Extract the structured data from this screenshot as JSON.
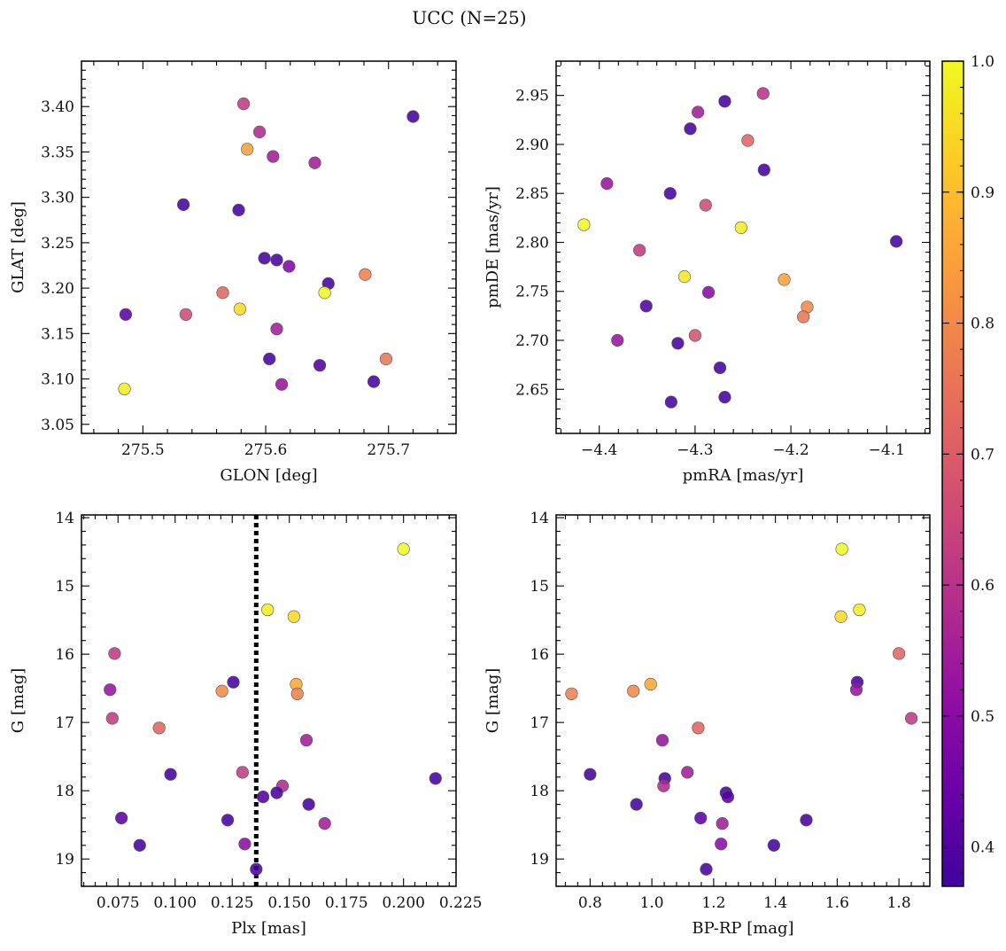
{
  "title": "UCC (N=25)",
  "panels": [
    {
      "id": "glon-glat",
      "xlabel": "GLON [deg]",
      "ylabel": "GLAT [deg]",
      "xlim": [
        275.45,
        275.755
      ],
      "ylim": [
        3.04,
        3.45
      ],
      "xticks": [
        275.5,
        275.6,
        275.7
      ],
      "xtick_labels": [
        "275.5",
        "275.6",
        "275.7"
      ],
      "yticks": [
        3.05,
        3.1,
        3.15,
        3.2,
        3.25,
        3.3,
        3.35,
        3.4
      ],
      "ytick_labels": [
        "3.05",
        "3.10",
        "3.15",
        "3.20",
        "3.25",
        "3.30",
        "3.35",
        "3.40"
      ],
      "y_inverted": false,
      "points": [
        {
          "x": 275.582,
          "y": 3.403,
          "c": 0.62
        },
        {
          "x": 275.595,
          "y": 3.372,
          "c": 0.58
        },
        {
          "x": 275.72,
          "y": 3.389,
          "c": 0.38
        },
        {
          "x": 275.585,
          "y": 3.353,
          "c": 0.85
        },
        {
          "x": 275.606,
          "y": 3.345,
          "c": 0.55
        },
        {
          "x": 275.64,
          "y": 3.338,
          "c": 0.55
        },
        {
          "x": 275.533,
          "y": 3.292,
          "c": 0.38
        },
        {
          "x": 275.578,
          "y": 3.286,
          "c": 0.38
        },
        {
          "x": 275.599,
          "y": 3.233,
          "c": 0.38
        },
        {
          "x": 275.609,
          "y": 3.231,
          "c": 0.38
        },
        {
          "x": 275.619,
          "y": 3.224,
          "c": 0.48
        },
        {
          "x": 275.681,
          "y": 3.215,
          "c": 0.78
        },
        {
          "x": 275.651,
          "y": 3.205,
          "c": 0.38
        },
        {
          "x": 275.565,
          "y": 3.195,
          "c": 0.72
        },
        {
          "x": 275.648,
          "y": 3.195,
          "c": 1.0
        },
        {
          "x": 275.579,
          "y": 3.177,
          "c": 0.95
        },
        {
          "x": 275.486,
          "y": 3.171,
          "c": 0.42
        },
        {
          "x": 275.535,
          "y": 3.171,
          "c": 0.66
        },
        {
          "x": 275.609,
          "y": 3.155,
          "c": 0.55
        },
        {
          "x": 275.603,
          "y": 3.122,
          "c": 0.38
        },
        {
          "x": 275.644,
          "y": 3.115,
          "c": 0.4
        },
        {
          "x": 275.698,
          "y": 3.122,
          "c": 0.76
        },
        {
          "x": 275.613,
          "y": 3.094,
          "c": 0.53
        },
        {
          "x": 275.688,
          "y": 3.097,
          "c": 0.38
        },
        {
          "x": 275.485,
          "y": 3.089,
          "c": 0.98
        }
      ]
    },
    {
      "id": "pmra-pmde",
      "xlabel": "pmRA [mas/yr]",
      "ylabel": "pmDE [mas/yr]",
      "xlim": [
        -4.445,
        -4.055
      ],
      "ylim": [
        2.605,
        2.985
      ],
      "xticks": [
        -4.4,
        -4.3,
        -4.2,
        -4.1
      ],
      "xtick_labels": [
        "−4.4",
        "−4.3",
        "−4.2",
        "−4.1"
      ],
      "yticks": [
        2.65,
        2.7,
        2.75,
        2.8,
        2.85,
        2.9,
        2.95
      ],
      "ytick_labels": [
        "2.65",
        "2.70",
        "2.75",
        "2.80",
        "2.85",
        "2.90",
        "2.95"
      ],
      "y_inverted": false,
      "points": [
        {
          "x": -4.229,
          "y": 2.952,
          "c": 0.6
        },
        {
          "x": -4.269,
          "y": 2.944,
          "c": 0.38
        },
        {
          "x": -4.297,
          "y": 2.933,
          "c": 0.55
        },
        {
          "x": -4.305,
          "y": 2.916,
          "c": 0.38
        },
        {
          "x": -4.245,
          "y": 2.904,
          "c": 0.72
        },
        {
          "x": -4.228,
          "y": 2.874,
          "c": 0.38
        },
        {
          "x": -4.392,
          "y": 2.86,
          "c": 0.53
        },
        {
          "x": -4.326,
          "y": 2.85,
          "c": 0.38
        },
        {
          "x": -4.289,
          "y": 2.838,
          "c": 0.66
        },
        {
          "x": -4.416,
          "y": 2.818,
          "c": 1.0
        },
        {
          "x": -4.252,
          "y": 2.815,
          "c": 0.98
        },
        {
          "x": -4.09,
          "y": 2.801,
          "c": 0.38
        },
        {
          "x": -4.358,
          "y": 2.792,
          "c": 0.62
        },
        {
          "x": -4.311,
          "y": 2.765,
          "c": 0.97
        },
        {
          "x": -4.207,
          "y": 2.762,
          "c": 0.85
        },
        {
          "x": -4.286,
          "y": 2.749,
          "c": 0.5
        },
        {
          "x": -4.351,
          "y": 2.735,
          "c": 0.4
        },
        {
          "x": -4.183,
          "y": 2.734,
          "c": 0.8
        },
        {
          "x": -4.187,
          "y": 2.724,
          "c": 0.76
        },
        {
          "x": -4.3,
          "y": 2.705,
          "c": 0.68
        },
        {
          "x": -4.381,
          "y": 2.7,
          "c": 0.53
        },
        {
          "x": -4.318,
          "y": 2.697,
          "c": 0.38
        },
        {
          "x": -4.274,
          "y": 2.672,
          "c": 0.38
        },
        {
          "x": -4.269,
          "y": 2.642,
          "c": 0.38
        },
        {
          "x": -4.325,
          "y": 2.637,
          "c": 0.38
        }
      ]
    },
    {
      "id": "plx-g",
      "xlabel": "Plx [mas]",
      "ylabel": "G [mag]",
      "xlim": [
        0.059,
        0.223
      ],
      "ylim": [
        19.4,
        13.96
      ],
      "xticks": [
        0.075,
        0.1,
        0.125,
        0.15,
        0.175,
        0.2,
        0.225
      ],
      "xtick_labels": [
        "0.075",
        "0.100",
        "0.125",
        "0.150",
        "0.175",
        "0.200",
        "0.225"
      ],
      "yticks": [
        14,
        15,
        16,
        17,
        18,
        19
      ],
      "ytick_labels": [
        "14",
        "15",
        "16",
        "17",
        "18",
        "19"
      ],
      "y_inverted": true,
      "vline": {
        "x": 0.1355
      },
      "points": [
        {
          "x": 0.2,
          "y": 14.46,
          "c": 1.0
        },
        {
          "x": 0.1405,
          "y": 15.35,
          "c": 0.98
        },
        {
          "x": 0.152,
          "y": 15.45,
          "c": 0.95
        },
        {
          "x": 0.0735,
          "y": 15.99,
          "c": 0.62
        },
        {
          "x": 0.1255,
          "y": 16.41,
          "c": 0.38
        },
        {
          "x": 0.0715,
          "y": 16.52,
          "c": 0.53
        },
        {
          "x": 0.1205,
          "y": 16.54,
          "c": 0.8
        },
        {
          "x": 0.153,
          "y": 16.44,
          "c": 0.86
        },
        {
          "x": 0.1535,
          "y": 16.58,
          "c": 0.78
        },
        {
          "x": 0.0725,
          "y": 16.94,
          "c": 0.62
        },
        {
          "x": 0.093,
          "y": 17.08,
          "c": 0.72
        },
        {
          "x": 0.1575,
          "y": 17.26,
          "c": 0.55
        },
        {
          "x": 0.098,
          "y": 17.76,
          "c": 0.38
        },
        {
          "x": 0.1295,
          "y": 17.73,
          "c": 0.62
        },
        {
          "x": 0.147,
          "y": 17.93,
          "c": 0.58
        },
        {
          "x": 0.214,
          "y": 17.82,
          "c": 0.38
        },
        {
          "x": 0.1445,
          "y": 18.03,
          "c": 0.38
        },
        {
          "x": 0.1385,
          "y": 18.09,
          "c": 0.4
        },
        {
          "x": 0.1585,
          "y": 18.2,
          "c": 0.38
        },
        {
          "x": 0.0765,
          "y": 18.4,
          "c": 0.42
        },
        {
          "x": 0.123,
          "y": 18.43,
          "c": 0.38
        },
        {
          "x": 0.1655,
          "y": 18.48,
          "c": 0.55
        },
        {
          "x": 0.0845,
          "y": 18.8,
          "c": 0.38
        },
        {
          "x": 0.1305,
          "y": 18.78,
          "c": 0.5
        },
        {
          "x": 0.1355,
          "y": 19.15,
          "c": 0.38
        }
      ]
    },
    {
      "id": "bprp-g",
      "xlabel": "BP-RP [mag]",
      "ylabel": "G [mag]",
      "xlim": [
        0.69,
        1.9
      ],
      "ylim": [
        19.4,
        13.96
      ],
      "xticks": [
        0.8,
        1.0,
        1.2,
        1.4,
        1.6,
        1.8
      ],
      "xtick_labels": [
        "0.8",
        "1.0",
        "1.2",
        "1.4",
        "1.6",
        "1.8"
      ],
      "yticks": [
        14,
        15,
        16,
        17,
        18,
        19
      ],
      "ytick_labels": [
        "14",
        "15",
        "16",
        "17",
        "18",
        "19"
      ],
      "y_inverted": true,
      "points": [
        {
          "x": 1.615,
          "y": 14.46,
          "c": 1.0
        },
        {
          "x": 1.672,
          "y": 15.35,
          "c": 0.98
        },
        {
          "x": 1.612,
          "y": 15.45,
          "c": 0.95
        },
        {
          "x": 1.8,
          "y": 15.99,
          "c": 0.72
        },
        {
          "x": 1.665,
          "y": 16.41,
          "c": 0.38
        },
        {
          "x": 1.662,
          "y": 16.52,
          "c": 0.53
        },
        {
          "x": 0.74,
          "y": 16.58,
          "c": 0.78
        },
        {
          "x": 0.94,
          "y": 16.54,
          "c": 0.8
        },
        {
          "x": 0.996,
          "y": 16.44,
          "c": 0.86
        },
        {
          "x": 1.84,
          "y": 16.94,
          "c": 0.62
        },
        {
          "x": 1.15,
          "y": 17.08,
          "c": 0.72
        },
        {
          "x": 1.034,
          "y": 17.26,
          "c": 0.53
        },
        {
          "x": 0.8,
          "y": 17.76,
          "c": 0.38
        },
        {
          "x": 1.042,
          "y": 17.82,
          "c": 0.38
        },
        {
          "x": 1.038,
          "y": 17.93,
          "c": 0.58
        },
        {
          "x": 1.115,
          "y": 17.73,
          "c": 0.55
        },
        {
          "x": 1.24,
          "y": 18.03,
          "c": 0.38
        },
        {
          "x": 1.246,
          "y": 18.09,
          "c": 0.4
        },
        {
          "x": 0.95,
          "y": 18.2,
          "c": 0.38
        },
        {
          "x": 1.158,
          "y": 18.4,
          "c": 0.42
        },
        {
          "x": 1.5,
          "y": 18.43,
          "c": 0.38
        },
        {
          "x": 1.228,
          "y": 18.48,
          "c": 0.55
        },
        {
          "x": 1.224,
          "y": 18.78,
          "c": 0.5
        },
        {
          "x": 1.395,
          "y": 18.8,
          "c": 0.38
        },
        {
          "x": 1.176,
          "y": 19.15,
          "c": 0.38
        }
      ]
    }
  ],
  "colorbar": {
    "colormap": "plasma",
    "range": [
      0.37,
      1.0
    ],
    "ticks": [
      0.4,
      0.5,
      0.6,
      0.7,
      0.8,
      0.9,
      1.0
    ],
    "tick_labels": [
      "0.4",
      "0.5",
      "0.6",
      "0.7",
      "0.8",
      "0.9",
      "1.0"
    ]
  },
  "chart_data": [
    {
      "type": "scatter",
      "xlabel": "GLON [deg]",
      "ylabel": "GLAT [deg]",
      "xlim": [
        275.45,
        275.755
      ],
      "ylim": [
        3.04,
        3.45
      ]
    },
    {
      "type": "scatter",
      "xlabel": "pmRA [mas/yr]",
      "ylabel": "pmDE [mas/yr]",
      "xlim": [
        -4.445,
        -4.055
      ],
      "ylim": [
        2.605,
        2.985
      ]
    },
    {
      "type": "scatter",
      "xlabel": "Plx [mas]",
      "ylabel": "G [mag]",
      "xlim": [
        0.059,
        0.223
      ],
      "ylim": [
        19.4,
        13.96
      ]
    },
    {
      "type": "scatter",
      "xlabel": "BP-RP [mag]",
      "ylabel": "G [mag]",
      "xlim": [
        0.69,
        1.9
      ],
      "ylim": [
        19.4,
        13.96
      ]
    }
  ],
  "colors": {
    "vline": "#000000",
    "axis": "#000000",
    "marker_edge": "#555555"
  }
}
